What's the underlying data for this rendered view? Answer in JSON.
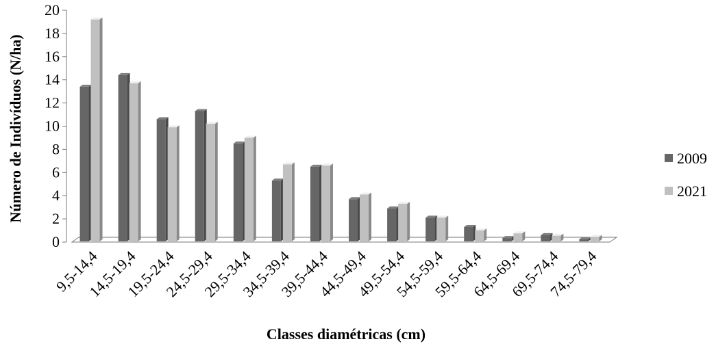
{
  "chart_data": {
    "type": "bar",
    "xlabel": "Classes diamétricas (cm)",
    "ylabel": "Número de Indivíduos (N/ha)",
    "ylim": [
      0,
      20
    ],
    "yticks": [
      0,
      2,
      4,
      6,
      8,
      10,
      12,
      14,
      16,
      18,
      20
    ],
    "categories": [
      "9,5-14,4",
      "14,5-19,4",
      "19,5-24,4",
      "24,5-29,4",
      "29,5-34,4",
      "34,5-39,4",
      "39,5-44,4",
      "44,5-49,4",
      "49,5-54,4",
      "54,5-59,4",
      "59,5-64,4",
      "64,5-69,4",
      "69,5-74,4",
      "74,5-79,4"
    ],
    "series": [
      {
        "name": "2009",
        "color": "#666666",
        "values": [
          13.4,
          14.4,
          10.6,
          11.3,
          8.5,
          5.3,
          6.5,
          3.7,
          2.9,
          2.1,
          1.3,
          0.35,
          0.6,
          0.25
        ]
      },
      {
        "name": "2021",
        "color": "#c0c0c0",
        "values": [
          19.2,
          13.7,
          9.9,
          10.2,
          9.0,
          6.7,
          6.6,
          4.1,
          3.3,
          2.1,
          1.0,
          0.75,
          0.55,
          0.45
        ]
      }
    ],
    "legend_position": "right",
    "grid": false,
    "style": "3d-column"
  }
}
